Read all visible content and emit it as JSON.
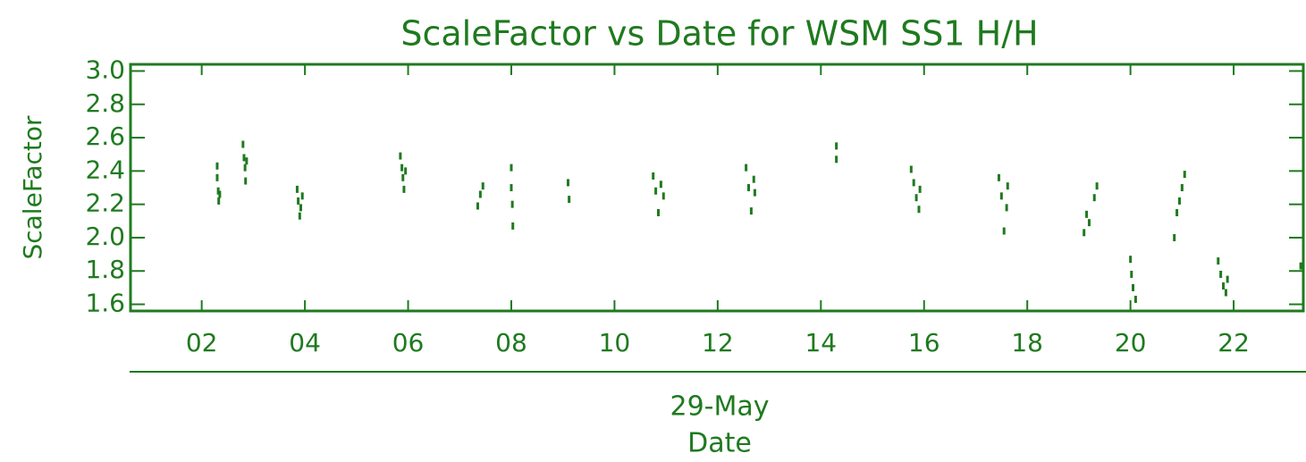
{
  "chart_data": {
    "type": "scatter",
    "title": "ScaleFactor vs Date for WSM SS1 H/H",
    "ylabel": "ScaleFactor",
    "xlabel": "Date",
    "annotation": "29-May",
    "color": "#1f7a1f",
    "xlim": [
      0.62,
      23.35
    ],
    "ylim": [
      1.56,
      3.04
    ],
    "xticks": [
      {
        "value": 2,
        "label": "02"
      },
      {
        "value": 4,
        "label": "04"
      },
      {
        "value": 6,
        "label": "06"
      },
      {
        "value": 8,
        "label": "08"
      },
      10,
      12,
      14,
      16,
      18,
      20,
      22
    ],
    "yticks": [
      {
        "value": 1.6,
        "label": "1.6"
      },
      {
        "value": 1.8,
        "label": "1.8"
      },
      {
        "value": 2.0,
        "label": "2.0"
      },
      {
        "value": 2.2,
        "label": "2.2"
      },
      {
        "value": 2.4,
        "label": "2.4"
      },
      {
        "value": 2.6,
        "label": "2.6"
      },
      {
        "value": 2.8,
        "label": "2.8"
      },
      {
        "value": 3.0,
        "label": "3.0"
      }
    ],
    "x": [
      2.3,
      2.3,
      2.32,
      2.33,
      2.35,
      2.8,
      2.82,
      2.84,
      2.85,
      2.87,
      3.85,
      3.87,
      3.9,
      3.92,
      3.95,
      5.85,
      5.88,
      5.9,
      5.92,
      5.95,
      7.35,
      7.4,
      7.45,
      8.0,
      8.0,
      8.02,
      8.03,
      9.1,
      9.12,
      10.75,
      10.8,
      10.85,
      10.9,
      10.95,
      12.55,
      12.6,
      12.65,
      12.7,
      12.72,
      14.3,
      14.3,
      15.75,
      15.8,
      15.85,
      15.9,
      15.92,
      17.45,
      17.5,
      17.55,
      17.6,
      17.62,
      19.1,
      19.15,
      19.2,
      19.3,
      19.35,
      20.0,
      20.02,
      20.05,
      20.1,
      20.85,
      20.9,
      20.95,
      21.0,
      21.05,
      21.7,
      21.75,
      21.8,
      21.85,
      21.88,
      23.3
    ],
    "y": [
      2.43,
      2.36,
      2.28,
      2.22,
      2.26,
      2.56,
      2.48,
      2.42,
      2.34,
      2.46,
      2.29,
      2.22,
      2.13,
      2.18,
      2.25,
      2.49,
      2.42,
      2.36,
      2.29,
      2.4,
      2.19,
      2.26,
      2.31,
      2.42,
      2.3,
      2.2,
      2.07,
      2.33,
      2.23,
      2.37,
      2.28,
      2.15,
      2.32,
      2.25,
      2.42,
      2.3,
      2.16,
      2.35,
      2.27,
      2.55,
      2.47,
      2.41,
      2.33,
      2.24,
      2.17,
      2.29,
      2.36,
      2.25,
      2.04,
      2.18,
      2.31,
      2.03,
      2.14,
      2.09,
      2.24,
      2.31,
      1.87,
      1.78,
      1.7,
      1.63,
      2.0,
      2.15,
      2.22,
      2.3,
      2.38,
      1.86,
      1.78,
      1.71,
      1.67,
      1.75,
      1.83
    ]
  }
}
